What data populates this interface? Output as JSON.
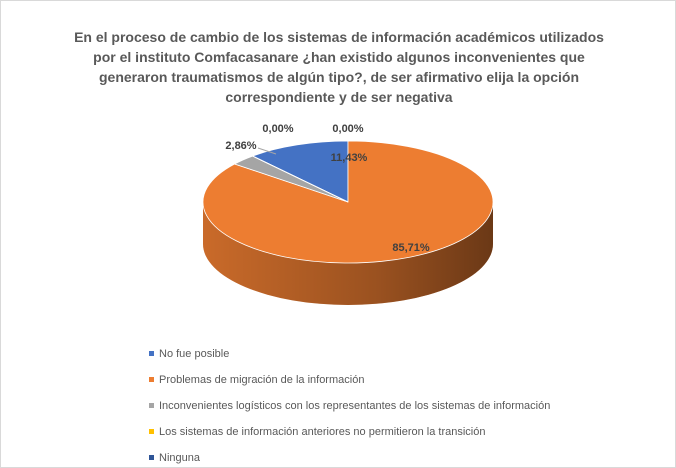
{
  "chart_data": {
    "type": "pie",
    "title": "En el proceso de cambio de los sistemas de información académicos utilizados por el instituto Comfacasanare ¿han existido algunos inconvenientes que generaron traumatismos de algún tipo?, de ser afirmativo elija la opción correspondiente y de ser negativa",
    "categories": [
      "No fue posible",
      "Problemas de migración de la información",
      "Inconvenientes logísticos con los representantes de los sistemas de información",
      "Los sistemas de información anteriores no permitieron la transición",
      "Ninguna"
    ],
    "values": [
      11.43,
      85.71,
      2.86,
      0,
      0
    ],
    "value_labels": [
      "11,43%",
      "85,71%",
      "2,86%",
      "0,00%",
      "0,00%"
    ],
    "colors": [
      "#4472c4",
      "#ed7d31",
      "#a5a5a5",
      "#ffc000",
      "#2f5597"
    ],
    "legend": "bottom"
  }
}
